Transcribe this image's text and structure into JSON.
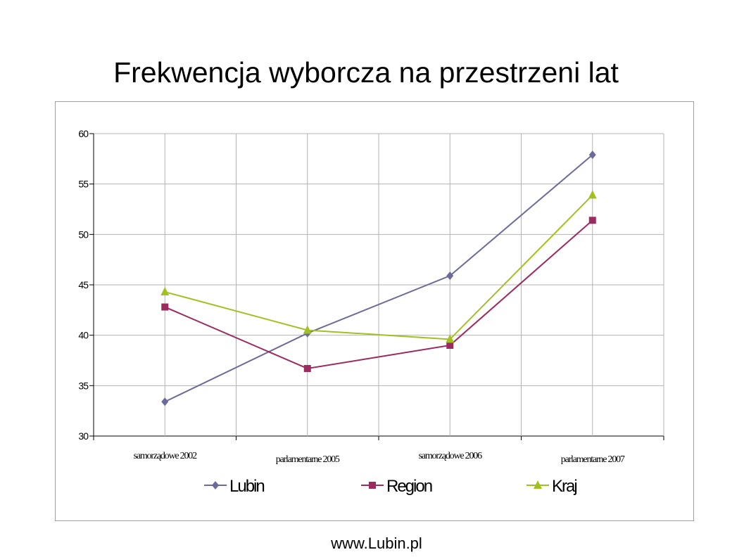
{
  "page": {
    "title": "Frekwencja wyborcza na przestrzeni lat",
    "footer": "www.Lubin.pl"
  },
  "chart_data": {
    "type": "line",
    "title": "Frekwencja wyborcza na przestrzeni lat",
    "categories": [
      "samorządowe 2002",
      "parlamentarne 2005",
      "samorządowe 2006",
      "parlamentarne 2007"
    ],
    "ylim": [
      30,
      60
    ],
    "yticks": [
      30,
      35,
      40,
      45,
      50,
      55,
      60
    ],
    "grid": true,
    "legend": "bottom",
    "series": [
      {
        "name": "Lubin",
        "values": [
          33.4,
          40.2,
          45.9,
          57.9
        ],
        "color": "#6b6b9b",
        "marker": "diamond"
      },
      {
        "name": "Region",
        "values": [
          42.8,
          36.7,
          39.0,
          51.4
        ],
        "color": "#9c2b60",
        "marker": "square"
      },
      {
        "name": "Kraj",
        "values": [
          44.3,
          40.5,
          39.6,
          53.9
        ],
        "color": "#a3c021",
        "marker": "triangle"
      }
    ]
  }
}
